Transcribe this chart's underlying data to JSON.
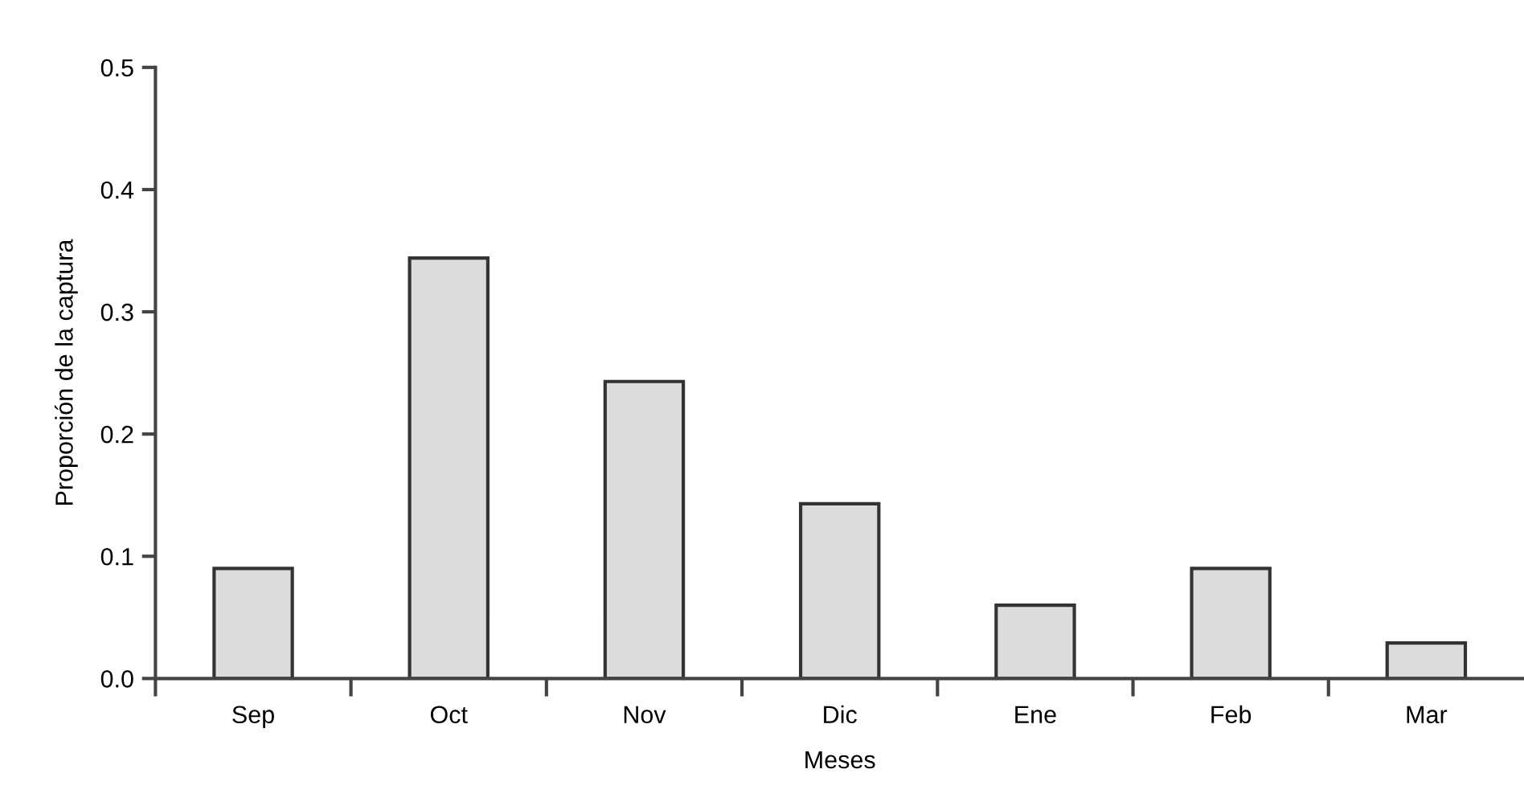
{
  "chart_data": {
    "type": "bar",
    "xlabel": "Meses",
    "ylabel": "Proporción de la captura",
    "categories": [
      "Sep",
      "Oct",
      "Nov",
      "Dic",
      "Ene",
      "Feb",
      "Mar"
    ],
    "values": [
      0.09,
      0.344,
      0.243,
      0.143,
      0.06,
      0.09,
      0.029
    ],
    "color": "#dcdcdc",
    "ylim": [
      0,
      0.5
    ],
    "yticks": [
      {
        "value": 0,
        "label": "0.0"
      },
      0.1,
      0.2,
      0.3,
      0.4,
      0.5
    ],
    "grid": false,
    "legend": false
  }
}
